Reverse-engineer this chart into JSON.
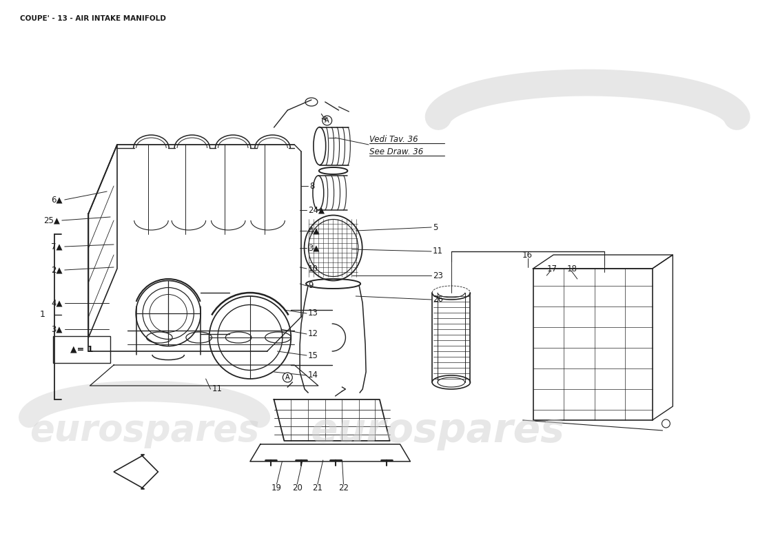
{
  "title": "COUPE' - 13 - AIR INTAKE MANIFOLD",
  "title_fontsize": 7.5,
  "bg_color": "#ffffff",
  "watermark_text": "eurospares",
  "vedi_text1": "Vedi Tav. 36",
  "vedi_text2": "See Draw. 36",
  "legend_text": "▲= 1",
  "font_color": "#1a1a1a",
  "line_color": "#222222",
  "watermark_gray": "#c8c8c8"
}
